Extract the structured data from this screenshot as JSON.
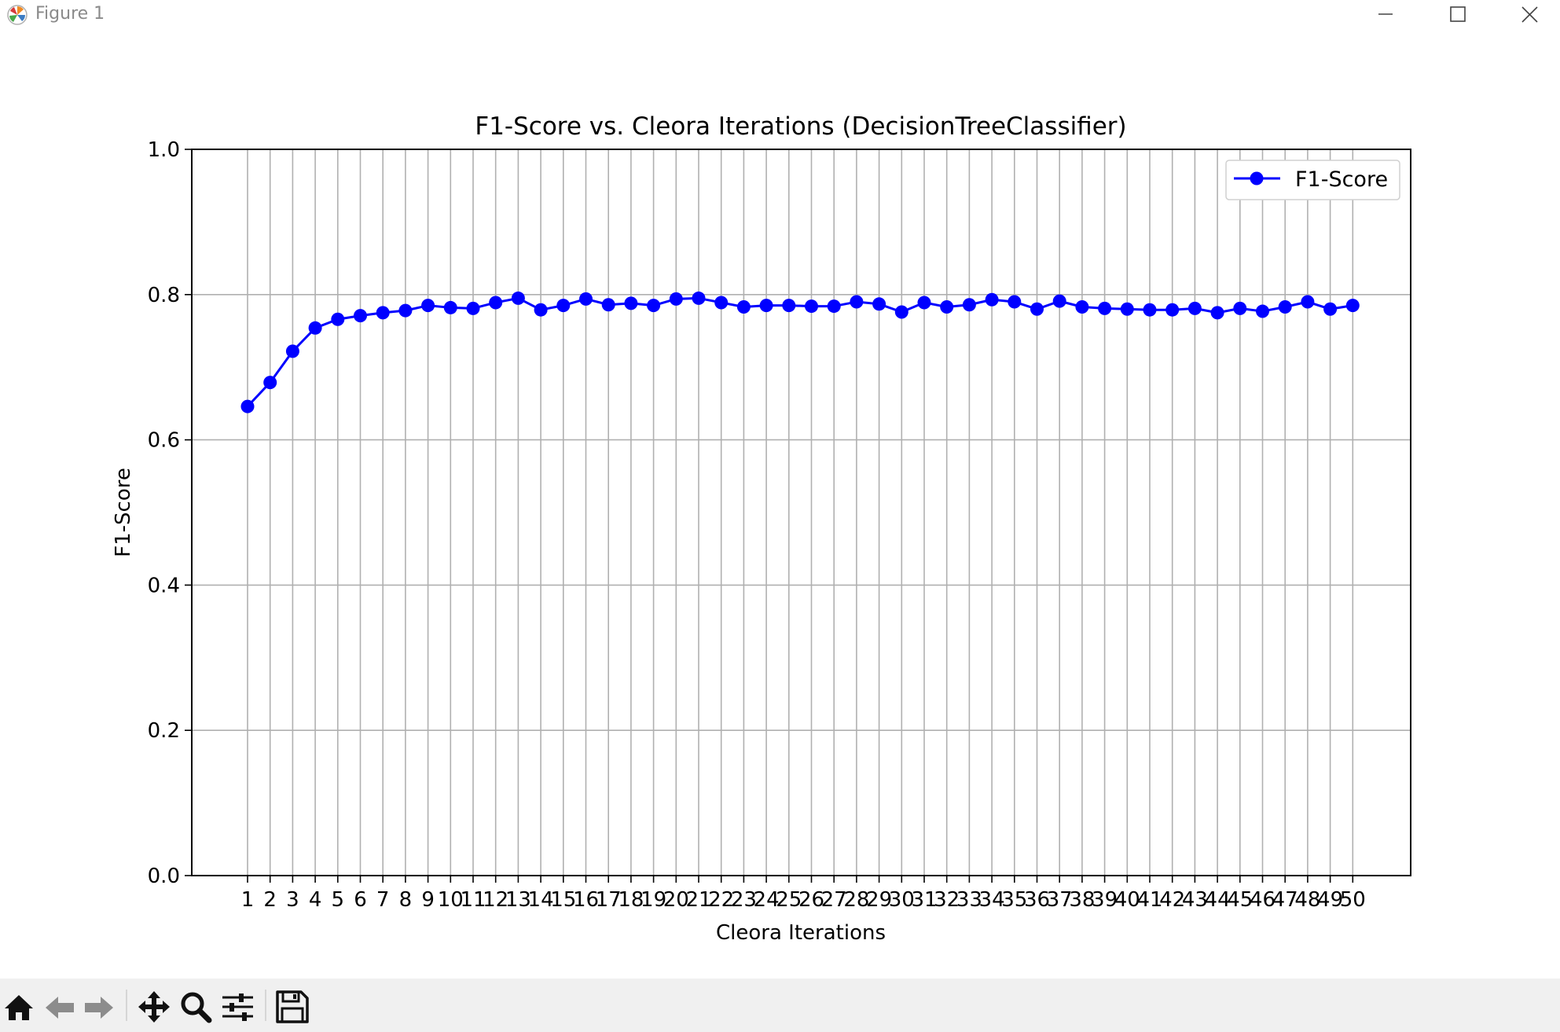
{
  "window": {
    "title": "Figure 1",
    "controls": [
      "minimize",
      "maximize",
      "close"
    ]
  },
  "toolbar": {
    "buttons": [
      {
        "name": "home",
        "icon": "home-icon"
      },
      {
        "name": "back",
        "icon": "arrow-left-icon"
      },
      {
        "name": "forward",
        "icon": "arrow-right-icon"
      },
      {
        "name": "pan",
        "icon": "move-icon"
      },
      {
        "name": "zoom",
        "icon": "zoom-icon"
      },
      {
        "name": "configure-subplots",
        "icon": "sliders-icon"
      },
      {
        "name": "save",
        "icon": "save-icon"
      }
    ]
  },
  "chart_data": {
    "type": "line",
    "title": "F1-Score vs. Cleora Iterations (DecisionTreeClassifier)",
    "xlabel": "Cleora Iterations",
    "ylabel": "F1-Score",
    "ylim": [
      0.0,
      1.0
    ],
    "yticks": [
      "0.0",
      "0.2",
      "0.4",
      "0.6",
      "0.8",
      "1.0"
    ],
    "x": [
      1,
      2,
      3,
      4,
      5,
      6,
      7,
      8,
      9,
      10,
      11,
      12,
      13,
      14,
      15,
      16,
      17,
      18,
      19,
      20,
      21,
      22,
      23,
      24,
      25,
      26,
      27,
      28,
      29,
      30,
      31,
      32,
      33,
      34,
      35,
      36,
      37,
      38,
      39,
      40,
      41,
      42,
      43,
      44,
      45,
      46,
      47,
      48,
      49,
      50
    ],
    "xticks": [
      "1",
      "2",
      "3",
      "4",
      "5",
      "6",
      "7",
      "8",
      "9",
      "10",
      "11",
      "12",
      "13",
      "14",
      "15",
      "16",
      "17",
      "18",
      "19",
      "20",
      "21",
      "22",
      "23",
      "24",
      "25",
      "26",
      "27",
      "28",
      "29",
      "30",
      "31",
      "32",
      "33",
      "34",
      "35",
      "36",
      "37",
      "38",
      "39",
      "40",
      "41",
      "42",
      "43",
      "44",
      "45",
      "46",
      "47",
      "48",
      "49",
      "50"
    ],
    "series": [
      {
        "name": "F1-Score",
        "color": "#0000ff",
        "marker": "circle",
        "values": [
          0.646,
          0.679,
          0.722,
          0.754,
          0.766,
          0.771,
          0.775,
          0.778,
          0.785,
          0.782,
          0.781,
          0.789,
          0.795,
          0.779,
          0.785,
          0.794,
          0.786,
          0.788,
          0.785,
          0.794,
          0.795,
          0.789,
          0.783,
          0.785,
          0.785,
          0.784,
          0.784,
          0.79,
          0.787,
          0.776,
          0.789,
          0.783,
          0.786,
          0.793,
          0.79,
          0.78,
          0.791,
          0.783,
          0.781,
          0.78,
          0.779,
          0.779,
          0.781,
          0.775,
          0.781,
          0.777,
          0.783,
          0.79,
          0.78,
          0.785
        ]
      }
    ],
    "grid": true,
    "legend": "top-right"
  }
}
